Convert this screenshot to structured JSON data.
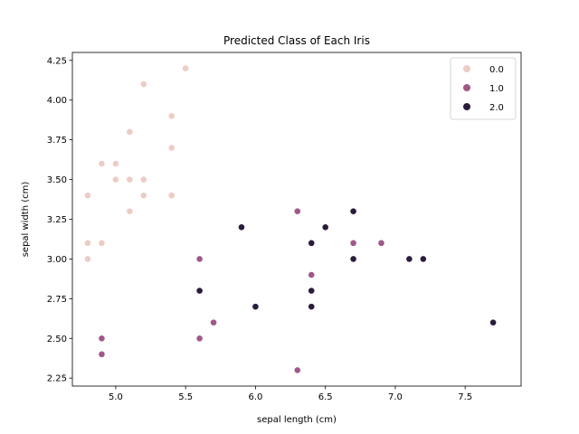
{
  "chart_data": {
    "type": "scatter",
    "title": "Predicted Class of Each Iris",
    "xlabel": "sepal length (cm)",
    "ylabel": "sepal width (cm)",
    "xlim": [
      4.69,
      7.9
    ],
    "ylim": [
      2.2,
      4.3
    ],
    "xticks": [
      5.0,
      5.5,
      6.0,
      6.5,
      7.0,
      7.5
    ],
    "xtick_labels": [
      "5.0",
      "5.5",
      "6.0",
      "6.5",
      "7.0",
      "7.5"
    ],
    "yticks": [
      2.25,
      2.5,
      2.75,
      3.0,
      3.25,
      3.5,
      3.75,
      4.0,
      4.25
    ],
    "ytick_labels": [
      "2.25",
      "2.50",
      "2.75",
      "3.00",
      "3.25",
      "3.50",
      "3.75",
      "4.00",
      "4.25"
    ],
    "grid": false,
    "legend_position": "top-right",
    "series": [
      {
        "name": "0.0",
        "color": "#ebcdc6",
        "x": [
          5.5,
          5.2,
          5.4,
          5.1,
          5.4,
          4.9,
          5.0,
          5.0,
          5.1,
          5.2,
          4.8,
          5.2,
          5.4,
          5.1,
          4.8,
          4.9,
          4.8
        ],
        "y": [
          4.2,
          4.1,
          3.9,
          3.8,
          3.7,
          3.6,
          3.6,
          3.5,
          3.5,
          3.5,
          3.4,
          3.4,
          3.4,
          3.3,
          3.1,
          3.1,
          3.0
        ]
      },
      {
        "name": "1.0",
        "color": "#9f5986",
        "x": [
          6.3,
          6.7,
          6.9,
          5.6,
          6.4,
          5.7,
          4.9,
          5.6,
          4.9,
          6.3
        ],
        "y": [
          3.3,
          3.1,
          3.1,
          3.0,
          2.9,
          2.6,
          2.5,
          2.5,
          2.4,
          2.3
        ]
      },
      {
        "name": "2.0",
        "color": "#2b1c3d",
        "x": [
          6.7,
          5.9,
          6.5,
          6.4,
          6.7,
          7.1,
          7.2,
          5.6,
          6.4,
          6.0,
          6.4,
          7.7
        ],
        "y": [
          3.3,
          3.2,
          3.2,
          3.1,
          3.0,
          3.0,
          3.0,
          2.8,
          2.8,
          2.7,
          2.7,
          2.6
        ]
      }
    ]
  }
}
